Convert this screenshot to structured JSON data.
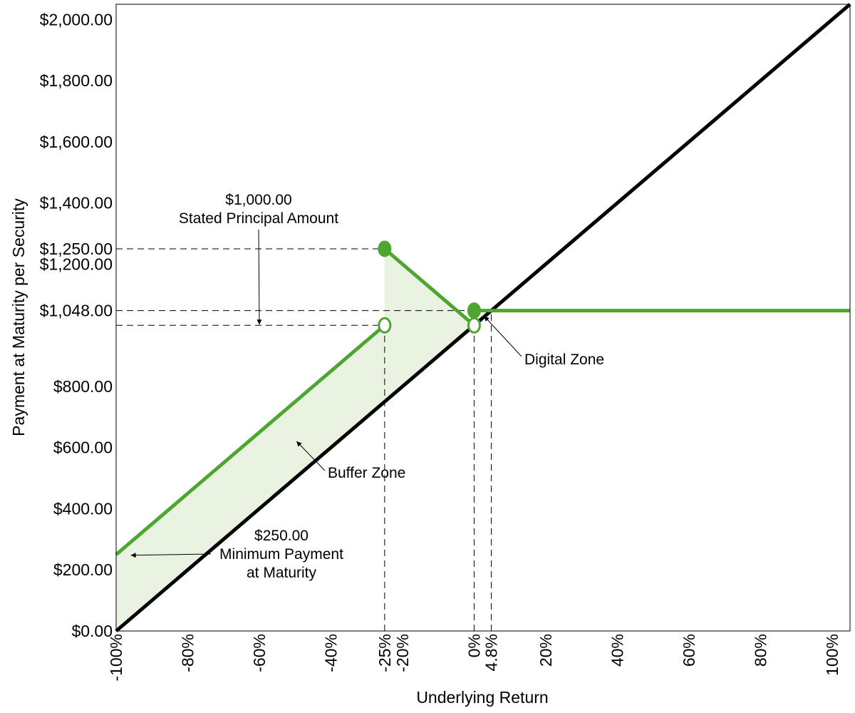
{
  "chart_data": {
    "type": "line",
    "xlabel": "Underlying Return",
    "ylabel": "Payment at Maturity per Security",
    "xlim": [
      -100,
      105
    ],
    "ylim": [
      0,
      2050
    ],
    "x_ticks": [
      {
        "value": -100,
        "label": "-100%"
      },
      {
        "value": -80,
        "label": "-80%"
      },
      {
        "value": -60,
        "label": "-60%"
      },
      {
        "value": -40,
        "label": "-40%"
      },
      {
        "value": -25,
        "label": "-25%"
      },
      {
        "value": -20,
        "label": "-20%"
      },
      {
        "value": 0,
        "label": "0%"
      },
      {
        "value": 4.8,
        "label": "4.8%"
      },
      {
        "value": 20,
        "label": "20%"
      },
      {
        "value": 40,
        "label": "40%"
      },
      {
        "value": 60,
        "label": "60%"
      },
      {
        "value": 80,
        "label": "80%"
      },
      {
        "value": 100,
        "label": "100%"
      }
    ],
    "y_ticks": [
      {
        "value": 0,
        "label": "$0.00"
      },
      {
        "value": 200,
        "label": "$200.00"
      },
      {
        "value": 400,
        "label": "$400.00"
      },
      {
        "value": 600,
        "label": "$600.00"
      },
      {
        "value": 800,
        "label": "$800.00"
      },
      {
        "value": 1048,
        "label": "$1,048.00"
      },
      {
        "value": 1200,
        "label": "$1,200.00"
      },
      {
        "value": 1250,
        "label": "$1,250.00"
      },
      {
        "value": 1400,
        "label": "$1,400.00"
      },
      {
        "value": 1600,
        "label": "$1,600.00"
      },
      {
        "value": 1800,
        "label": "$1,800.00"
      },
      {
        "value": 2000,
        "label": "$2,000.00"
      }
    ],
    "series": [
      {
        "name": "Underlying",
        "color": "#000000",
        "x": [
          -100,
          105
        ],
        "y": [
          0,
          2050
        ]
      },
      {
        "name": "Payment at Maturity",
        "color": "#4da630",
        "segments": [
          {
            "x": [
              -100,
              -25
            ],
            "y": [
              250,
              1000
            ]
          },
          {
            "x": [
              -25,
              0
            ],
            "y": [
              1250,
              1000
            ]
          },
          {
            "x": [
              0,
              105
            ],
            "y": [
              1048,
              1048
            ]
          }
        ]
      }
    ],
    "markers": [
      {
        "x": -25,
        "y": 1250,
        "filled": true
      },
      {
        "x": -25,
        "y": 1000,
        "filled": false
      },
      {
        "x": 0,
        "y": 1048,
        "filled": true
      },
      {
        "x": 0,
        "y": 1000,
        "filled": false
      }
    ],
    "shaded_region": {
      "color": "#eaf3e2",
      "points": [
        [
          -100,
          0
        ],
        [
          -100,
          250
        ],
        [
          -25,
          1000
        ],
        [
          -25,
          1250
        ],
        [
          0,
          1000
        ]
      ]
    },
    "reference_lines": [
      {
        "orientation": "horizontal",
        "y": 1250,
        "x_to": -25
      },
      {
        "orientation": "horizontal",
        "y": 1048,
        "x_to": 0
      },
      {
        "orientation": "horizontal",
        "y": 1000,
        "x_to": -25
      },
      {
        "orientation": "vertical",
        "x": -25,
        "y_to": 1000
      },
      {
        "orientation": "vertical",
        "x": 0,
        "y_to": 1000
      },
      {
        "orientation": "vertical",
        "x": 4.8,
        "y_to": 1048
      }
    ],
    "annotations": [
      {
        "lines": [
          "$1,000.00",
          "Stated Principal Amount"
        ],
        "arrow_to": {
          "x": -60,
          "y": 1000
        }
      },
      {
        "lines": [
          "Digital Zone"
        ],
        "arrow_to": {
          "x": 2,
          "y": 1030
        }
      },
      {
        "lines": [
          "Buffer Zone"
        ],
        "arrow_to": {
          "x": -50,
          "y": 625
        }
      },
      {
        "lines": [
          "$250.00",
          "Minimum Payment",
          "at Maturity"
        ],
        "arrow_to": {
          "x": -97.5,
          "y": 250
        }
      }
    ]
  }
}
